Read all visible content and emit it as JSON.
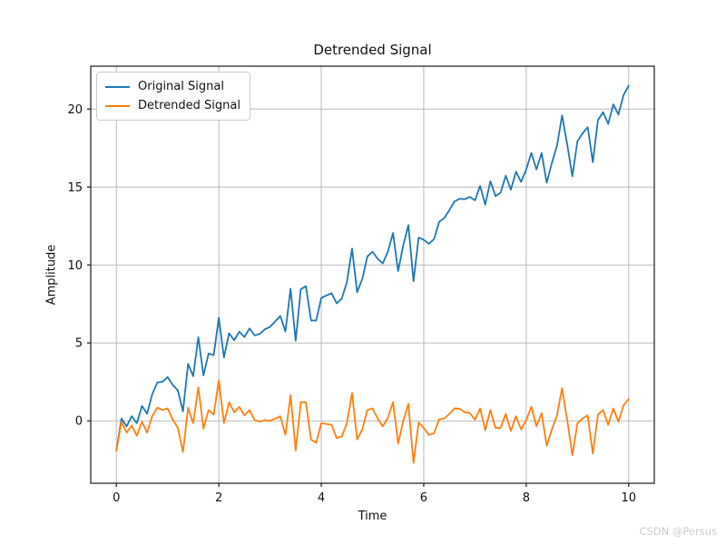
{
  "page": {
    "background": "#ffffff",
    "watermark": "CSDN @Persus"
  },
  "chart_data": {
    "type": "line",
    "title": "Detrended Signal",
    "xlabel": "Time",
    "ylabel": "Amplitude",
    "grid": true,
    "legend_position": "upper left",
    "xlim": [
      -0.5,
      10.5
    ],
    "ylim": [
      -4.0,
      22.75
    ],
    "xticks": [
      0,
      2,
      4,
      6,
      8,
      10
    ],
    "yticks": [
      0,
      5,
      10,
      15,
      20
    ],
    "grid_color": "#b9b9b9",
    "axis_color": "#1a1a1a",
    "tick_label_color": "#111111",
    "x": [
      0,
      0.1,
      0.2,
      0.3,
      0.4,
      0.5,
      0.6,
      0.7,
      0.8,
      0.9,
      1,
      1.1,
      1.2,
      1.3,
      1.4,
      1.5,
      1.6,
      1.7,
      1.8,
      1.9,
      2,
      2.1,
      2.2,
      2.3,
      2.4,
      2.5,
      2.6,
      2.7,
      2.8,
      2.9,
      3,
      3.1,
      3.2,
      3.3,
      3.4,
      3.5,
      3.6,
      3.7,
      3.8,
      3.9,
      4,
      4.1,
      4.2,
      4.3,
      4.4,
      4.5,
      4.6,
      4.7,
      4.8,
      4.9,
      5,
      5.1,
      5.2,
      5.3,
      5.4,
      5.5,
      5.6,
      5.7,
      5.8,
      5.9,
      6,
      6.1,
      6.2,
      6.3,
      6.4,
      6.5,
      6.6,
      6.7,
      6.8,
      6.9,
      7,
      7.1,
      7.2,
      7.3,
      7.4,
      7.5,
      7.6,
      7.7,
      7.8,
      7.9,
      8,
      8.1,
      8.2,
      8.3,
      8.4,
      8.5,
      8.6,
      8.7,
      8.8,
      8.9,
      9,
      9.1,
      9.2,
      9.3,
      9.4,
      9.5,
      9.6,
      9.7,
      9.8,
      9.9,
      10
    ],
    "series": [
      {
        "name": "Original Signal",
        "color": "#1f77b4",
        "values": [
          -1.9,
          0.15,
          -0.35,
          0.3,
          -0.15,
          0.96,
          0.46,
          1.71,
          2.46,
          2.51,
          2.81,
          2.31,
          1.96,
          0.61,
          3.66,
          2.87,
          5.37,
          2.92,
          4.32,
          4.22,
          6.62,
          4.07,
          5.62,
          5.17,
          5.72,
          5.38,
          5.93,
          5.48,
          5.58,
          5.88,
          6.03,
          6.38,
          6.73,
          5.73,
          8.48,
          5.14,
          8.44,
          8.64,
          6.44,
          6.44,
          7.89,
          8.04,
          8.19,
          7.54,
          7.84,
          8.9,
          11.05,
          8.25,
          9.1,
          10.55,
          10.85,
          10.4,
          10.1,
          10.85,
          12.05,
          9.61,
          11.26,
          12.56,
          8.96,
          11.76,
          11.61,
          11.36,
          11.66,
          12.76,
          13.01,
          13.52,
          14.07,
          14.25,
          14.22,
          14.37,
          14.15,
          15.07,
          13.87,
          15.37,
          14.42,
          14.63,
          15.73,
          14.83,
          15.98,
          15.33,
          16.13,
          17.18,
          16.13,
          17.18,
          15.28,
          16.54,
          17.64,
          19.59,
          17.74,
          15.69,
          17.94,
          18.44,
          18.84,
          16.59,
          19.29,
          19.8,
          19.05,
          20.3,
          19.65,
          20.9,
          21.5
        ]
      },
      {
        "name": "Detrended Signal",
        "color": "#ff7f0e",
        "values": [
          -1.9,
          -0.05,
          -0.75,
          -0.3,
          -0.95,
          -0.05,
          -0.75,
          0.3,
          0.85,
          0.7,
          0.8,
          0.1,
          -0.45,
          -2,
          0.85,
          -0.15,
          2.15,
          -0.5,
          0.7,
          0.4,
          2.6,
          -0.15,
          1.2,
          0.55,
          0.9,
          0.35,
          0.7,
          0.05,
          -0.05,
          0.05,
          0,
          0.15,
          0.3,
          -0.9,
          1.65,
          -1.9,
          1.2,
          1.2,
          -1.2,
          -1.4,
          -0.15,
          -0.2,
          -0.25,
          -1.1,
          -1,
          -0.15,
          1.8,
          -1.2,
          -0.55,
          0.7,
          0.8,
          0.15,
          -0.35,
          0.2,
          1.2,
          -1.45,
          0,
          1.1,
          -2.7,
          -0.1,
          -0.45,
          -0.9,
          -0.8,
          0.1,
          0.15,
          0.45,
          0.8,
          0.78,
          0.55,
          0.5,
          0.08,
          0.8,
          -0.6,
          0.7,
          -0.45,
          -0.45,
          0.45,
          -0.65,
          0.3,
          -0.55,
          0.05,
          0.9,
          -0.35,
          0.5,
          -1.6,
          -0.55,
          0.35,
          2.1,
          0.05,
          -2.2,
          -0.15,
          0.15,
          0.35,
          -2.1,
          0.4,
          0.7,
          -0.25,
          0.8,
          -0.05,
          1,
          1.4
        ]
      }
    ]
  }
}
